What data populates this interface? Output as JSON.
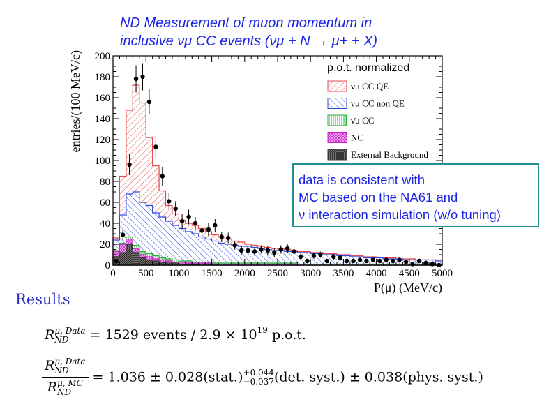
{
  "title_lines": [
    "ND Measurement of muon momentum in",
    "inclusive νμ CC events (νμ + N → μ+ + X)"
  ],
  "note_lines": [
    "data is consistent with",
    "MC based on the NA61 and",
    "ν interaction simulation (w/o tuning)"
  ],
  "results_heading": "Results",
  "equation1": {
    "lhs": "R",
    "sup": "μ, Data",
    "sub": "ND",
    "rhs": "= 1529  events / 2.9 × 10",
    "exp": "19",
    "tail": " p.o.t."
  },
  "equation2": {
    "num_sup": "μ, Data",
    "den_sup": "μ, MC",
    "sub": "ND",
    "main": "= 1.036 ± 0.028(stat.)",
    "up": "+0.044",
    "down": "−0.037",
    "rest": "(det. syst.) ± 0.038(phys. syst.)"
  },
  "colors": {
    "qe": "#e8474c",
    "nonqe": "#2b48e0",
    "nc": "#cc22cc",
    "nubar": "#27b33a",
    "ext": "#3a3a3a",
    "data": "#000000",
    "accent": "#1a24e6"
  },
  "chart_data": {
    "type": "bar",
    "xlabel": "P(μ) (MeV/c)",
    "ylabel": "entries/(100 MeV/c)",
    "xlim": [
      0,
      5000
    ],
    "ylim": [
      0,
      200
    ],
    "xticks": [
      "0",
      "500",
      "1000",
      "1500",
      "2000",
      "2500",
      "3000",
      "3500",
      "4000",
      "4500",
      "5000"
    ],
    "yticks": [
      "0",
      "20",
      "40",
      "60",
      "80",
      "100",
      "120",
      "140",
      "160",
      "180",
      "200"
    ],
    "legend": {
      "header": "p.o.t. normalized",
      "placement": "top-right",
      "entries": [
        "νμ CC QE",
        "νμ CC non QE",
        "ν̄μ CC",
        "NC",
        "External Background"
      ]
    },
    "bin_edges": [
      0,
      100,
      200,
      300,
      400,
      500,
      600,
      700,
      800,
      900,
      1000,
      1100,
      1200,
      1300,
      1400,
      1500,
      1600,
      1700,
      1800,
      1900,
      2000,
      2100,
      2200,
      2300,
      2400,
      2500,
      2600,
      2700,
      2800,
      2900,
      3000,
      3100,
      3200,
      3300,
      3400,
      3500,
      3600,
      3700,
      3800,
      3900,
      4000,
      4100,
      4200,
      4300,
      4400,
      4500,
      4600,
      4700,
      4800,
      4900,
      5000
    ],
    "series": [
      {
        "name": "External Background",
        "values": [
          8,
          12,
          20,
          12,
          7,
          5,
          4,
          3,
          2,
          2,
          1,
          1,
          1,
          1,
          1,
          1,
          0,
          0,
          0,
          0,
          0,
          0,
          0,
          0,
          0,
          0,
          0,
          0,
          0,
          0,
          0,
          0,
          0,
          0,
          0,
          0,
          0,
          0,
          0,
          0,
          0,
          0,
          0,
          0,
          0,
          0,
          0,
          0,
          0,
          0
        ]
      },
      {
        "name": "NC",
        "values": [
          13,
          20,
          25,
          16,
          10,
          8,
          6,
          5,
          4,
          3,
          3,
          2,
          2,
          2,
          2,
          1,
          1,
          1,
          1,
          1,
          1,
          1,
          1,
          1,
          1,
          1,
          1,
          1,
          0,
          0,
          0,
          0,
          0,
          0,
          0,
          0,
          0,
          0,
          0,
          0,
          0,
          0,
          0,
          0,
          0,
          0,
          0,
          0,
          0,
          0
        ]
      },
      {
        "name": "ν̄μ CC",
        "values": [
          14,
          21,
          27,
          19,
          13,
          11,
          9,
          7,
          6,
          5,
          4,
          4,
          3,
          3,
          3,
          2,
          2,
          2,
          2,
          2,
          2,
          2,
          2,
          2,
          2,
          2,
          2,
          2,
          1,
          1,
          1,
          1,
          1,
          1,
          1,
          1,
          1,
          1,
          1,
          1,
          1,
          1,
          1,
          1,
          1,
          1,
          1,
          1,
          1,
          1
        ]
      },
      {
        "name": "νμ CC non QE",
        "values": [
          24,
          48,
          68,
          70,
          60,
          57,
          50,
          46,
          42,
          38,
          35,
          32,
          30,
          27,
          25,
          23,
          21,
          20,
          19,
          18,
          18,
          17,
          16,
          15,
          14,
          14,
          13,
          13,
          12,
          12,
          11,
          11,
          10,
          10,
          9,
          9,
          8,
          8,
          7,
          7,
          7,
          6,
          6,
          6,
          5,
          5,
          5,
          5,
          5,
          4
        ]
      },
      {
        "name": "νμ CC QE",
        "values": [
          26,
          85,
          148,
          172,
          155,
          122,
          95,
          71,
          57,
          49,
          43,
          40,
          38,
          35,
          32,
          29,
          27,
          25,
          23,
          22,
          20,
          19,
          18,
          17,
          16,
          16,
          15,
          14,
          13,
          13,
          12,
          12,
          11,
          11,
          10,
          10,
          9,
          9,
          8,
          8,
          7,
          7,
          7,
          6,
          6,
          6,
          5,
          5,
          5,
          5
        ]
      }
    ],
    "data_points": {
      "x": [
        50,
        150,
        250,
        350,
        450,
        550,
        650,
        750,
        850,
        950,
        1050,
        1150,
        1250,
        1350,
        1450,
        1550,
        1650,
        1750,
        1850,
        1950,
        2050,
        2150,
        2250,
        2350,
        2450,
        2550,
        2650,
        2750,
        2850,
        2950,
        3050,
        3150,
        3250,
        3350,
        3450,
        3550,
        3650,
        3750,
        3850,
        3950,
        4050,
        4150,
        4250,
        4350,
        4450,
        4550,
        4650,
        4750,
        4850,
        4950
      ],
      "y": [
        4,
        29,
        96,
        178,
        180,
        156,
        113,
        85,
        61,
        54,
        42,
        46,
        40,
        33,
        34,
        38,
        27,
        26,
        19,
        14,
        14,
        13,
        15,
        14,
        12,
        15,
        16,
        13,
        8,
        4,
        9,
        10,
        4,
        8,
        7,
        4,
        4,
        5,
        4,
        5,
        4,
        5,
        4,
        5,
        3,
        1,
        4,
        2,
        1,
        0
      ],
      "yerr": [
        2,
        5,
        10,
        13,
        13,
        12,
        11,
        9,
        8,
        7,
        7,
        7,
        6,
        6,
        6,
        6,
        5,
        5,
        4,
        4,
        4,
        4,
        4,
        4,
        4,
        4,
        4,
        4,
        3,
        2,
        3,
        3,
        2,
        3,
        3,
        2,
        2,
        2,
        2,
        2,
        2,
        2,
        2,
        2,
        2,
        1,
        2,
        1,
        1,
        1
      ]
    }
  }
}
